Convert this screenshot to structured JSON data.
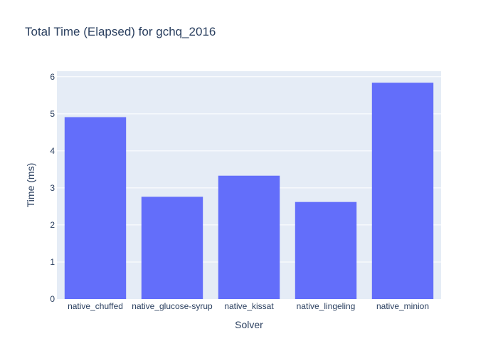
{
  "chart_data": {
    "type": "bar",
    "title": "Total Time (Elapsed) for gchq_2016",
    "xlabel": "Solver",
    "ylabel": "Time (ms)",
    "categories": [
      "native_chuffed",
      "native_glucose-syrup",
      "native_kissat",
      "native_lingeling",
      "native_minion"
    ],
    "values": [
      4.91,
      2.76,
      3.33,
      2.62,
      5.84
    ],
    "ylim": [
      0,
      6.15
    ],
    "yticks": [
      0,
      1,
      2,
      3,
      4,
      5,
      6
    ],
    "grid": true,
    "colors": {
      "bar": "#636efa",
      "plot_bg": "#e5ecf6",
      "grid": "#ffffff",
      "text": "#2a3f5f"
    }
  }
}
